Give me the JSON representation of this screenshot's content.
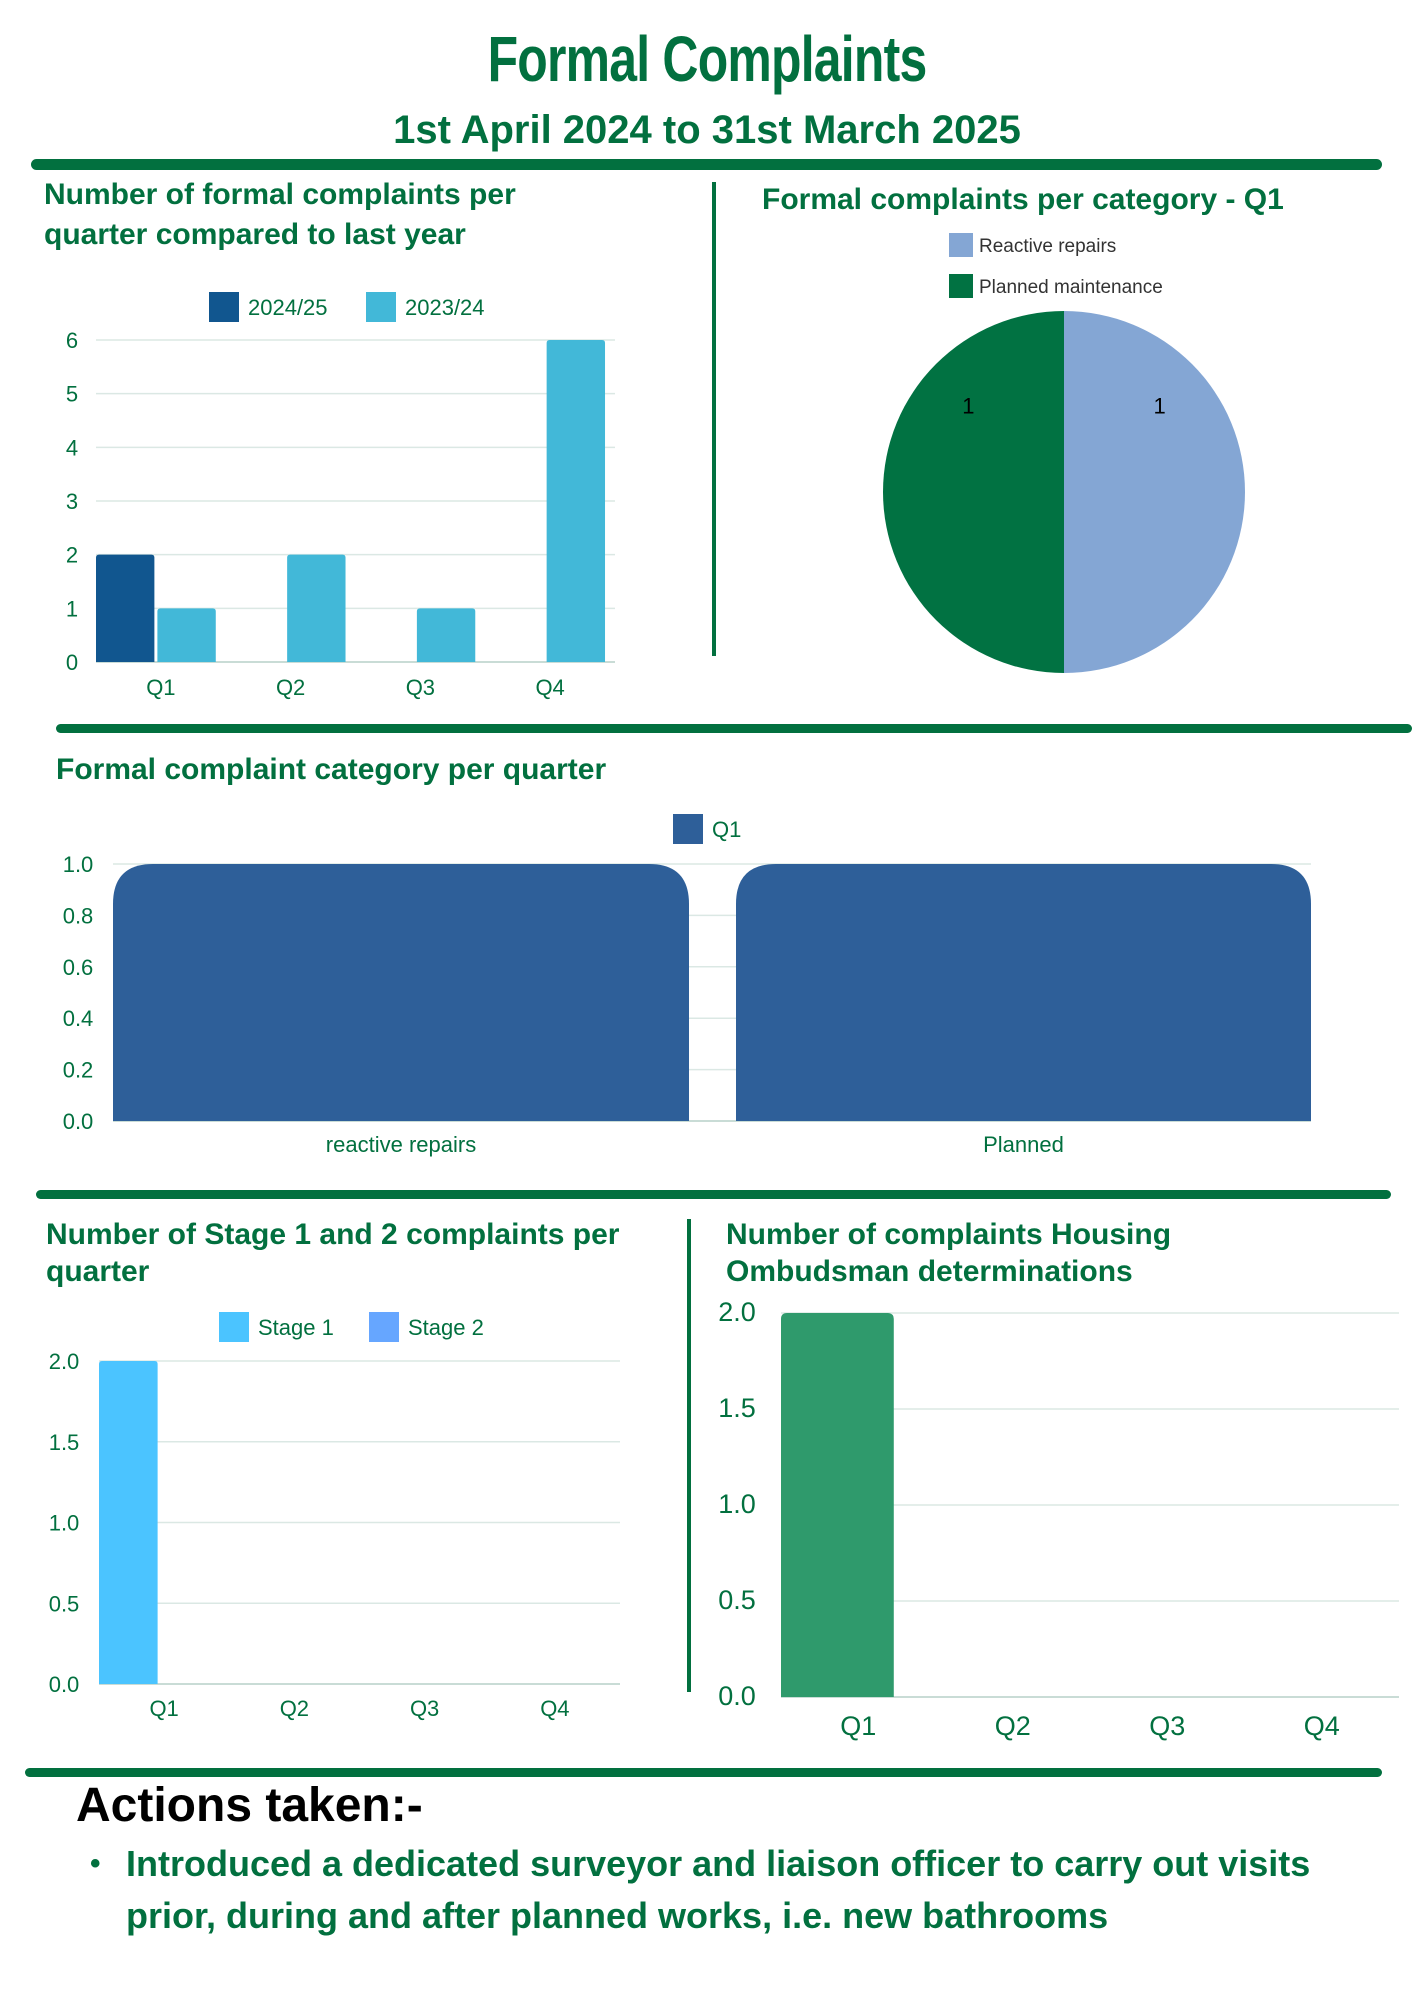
{
  "header": {
    "title": "Formal Complaints",
    "subtitle": "1st April 2024 to 31st March 2025"
  },
  "colors": {
    "brand_green": "#02703f"
  },
  "chart_data": [
    {
      "type": "bar",
      "title": "Number of formal complaints per quarter compared to last year",
      "categories": [
        "Q1",
        "Q2",
        "Q3",
        "Q4"
      ],
      "series": [
        {
          "name": "2024/25",
          "values": [
            2,
            0,
            0,
            0
          ],
          "color": "#11568f"
        },
        {
          "name": "2023/24",
          "values": [
            1,
            2,
            1,
            6
          ],
          "color": "#42b8d8"
        }
      ],
      "yticks": [
        "0",
        "1",
        "2",
        "3",
        "4",
        "5",
        "6"
      ],
      "ylim": [
        0,
        6
      ],
      "grid": true,
      "legend": "top"
    },
    {
      "type": "pie",
      "title": "Formal complaints per category - Q1",
      "slices": [
        {
          "name": "Reactive repairs",
          "value": 1,
          "label": "1",
          "color": "#84a6d4"
        },
        {
          "name": "Planned maintenance",
          "value": 1,
          "label": "1",
          "color": "#017242"
        }
      ],
      "legend": "top"
    },
    {
      "type": "bar",
      "title": "Formal complaint category per quarter",
      "categories": [
        "reactive repairs",
        "Planned"
      ],
      "series": [
        {
          "name": "Q1",
          "values": [
            1,
            1
          ],
          "color": "#2e5f99"
        }
      ],
      "yticks": [
        "0.0",
        "0.2",
        "0.4",
        "0.6",
        "0.8",
        "1.0"
      ],
      "ylim": [
        0,
        1
      ],
      "grid": true,
      "legend": "top"
    },
    {
      "type": "bar",
      "title": "Number of Stage 1 and 2 complaints per quarter",
      "categories": [
        "Q1",
        "Q2",
        "Q3",
        "Q4"
      ],
      "series": [
        {
          "name": "Stage 1",
          "values": [
            2,
            0,
            0,
            0
          ],
          "color": "#4bc4ff"
        },
        {
          "name": "Stage 2",
          "values": [
            0,
            0,
            0,
            0
          ],
          "color": "#66a6ff"
        }
      ],
      "yticks": [
        "0.0",
        "0.5",
        "1.0",
        "1.5",
        "2.0"
      ],
      "ylim": [
        0,
        2
      ],
      "grid": true,
      "legend": "top"
    },
    {
      "type": "bar",
      "title": "Number of complaints  Housing Ombudsman determinations",
      "categories": [
        "Q1",
        "Q2",
        "Q3",
        "Q4"
      ],
      "series": [
        {
          "values": [
            2,
            0,
            0,
            0
          ],
          "color": "#2f9a6c"
        }
      ],
      "yticks": [
        "0.0",
        "0.5",
        "1.0",
        "1.5",
        "2.0"
      ],
      "ylim": [
        0,
        2
      ],
      "grid": true,
      "legend": "none"
    }
  ],
  "actions": {
    "heading": "Actions taken:-",
    "items": [
      "Introduced a dedicated surveyor and liaison officer to carry out visits prior, during and after planned works, i.e. new bathrooms"
    ]
  }
}
